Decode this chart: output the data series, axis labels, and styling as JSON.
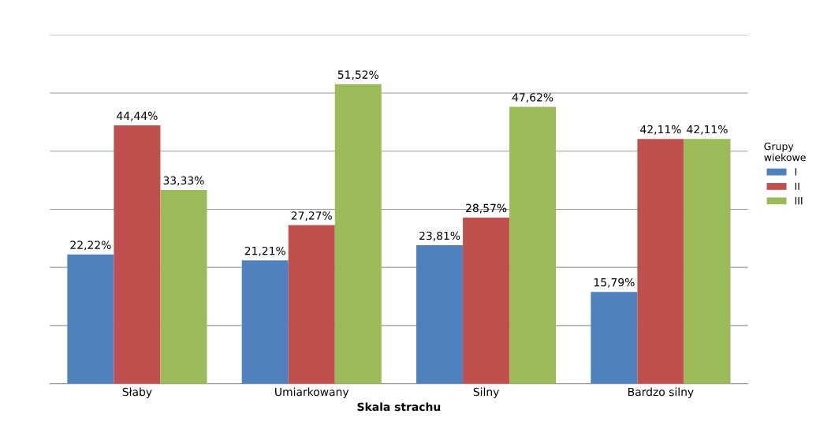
{
  "chart_data": {
    "type": "bar",
    "xlabel": "Skala strachu",
    "legend_title": "Grupy\nwiekowe",
    "categories": [
      "Słaby",
      "Umiarkowany",
      "Silny",
      "Bardzo silny"
    ],
    "series": [
      {
        "name": "I",
        "color": "#4f81bd",
        "values": [
          22.22,
          21.21,
          23.81,
          15.79
        ],
        "value_labels": [
          "22,22%",
          "21,21%",
          "23,81%",
          "15,79%"
        ]
      },
      {
        "name": "II",
        "color": "#c0504d",
        "values": [
          44.44,
          27.27,
          28.57,
          42.11
        ],
        "value_labels": [
          "44,44%",
          "27,27%",
          "28,57%",
          "42,11%"
        ]
      },
      {
        "name": "III",
        "color": "#9bbb59",
        "values": [
          33.33,
          51.52,
          47.62,
          42.11
        ],
        "value_labels": [
          "33,33%",
          "51,52%",
          "47,62%",
          "42,11%"
        ]
      }
    ],
    "ylim": [
      0,
      60
    ],
    "yticks": [
      {
        "value": 0,
        "label": null
      },
      {
        "value": 10,
        "label": null
      },
      {
        "value": 20,
        "label": null
      },
      {
        "value": 30,
        "label": null
      },
      {
        "value": 40,
        "label": null
      },
      {
        "value": 50,
        "label": null
      },
      {
        "value": 60,
        "label": null
      }
    ],
    "grid": "y",
    "legend": "right",
    "tick_labels": "x"
  }
}
